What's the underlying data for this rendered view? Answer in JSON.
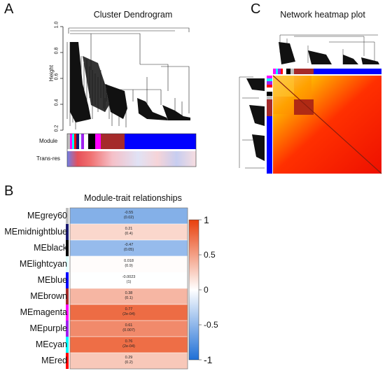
{
  "panelA": {
    "label": "A",
    "title": "Cluster Dendrogram",
    "ylabel": "Height",
    "yticks": [
      "1.0",
      "0.8",
      "0.6",
      "0.4",
      "0.2"
    ],
    "bar_labels": [
      "Module",
      "Trans-res"
    ]
  },
  "panelB": {
    "label": "B",
    "title": "Module-trait relationships",
    "rows": [
      {
        "name": "MEgrey60",
        "cor": "-0.55",
        "p": "(0.02)",
        "value": -0.55,
        "side": "#bebebe"
      },
      {
        "name": "MEmidnightblue",
        "cor": "0.21",
        "p": "(0.4)",
        "value": 0.21,
        "side": "#191970"
      },
      {
        "name": "MEblack",
        "cor": "-0.47",
        "p": "(0.05)",
        "value": -0.47,
        "side": "#000000"
      },
      {
        "name": "MElightcyan",
        "cor": "0.018",
        "p": "(0.9)",
        "value": 0.018,
        "side": "#e0ffff"
      },
      {
        "name": "MEblue",
        "cor": "-0.0023",
        "p": "(1)",
        "value": -0.0023,
        "side": "#0000ff"
      },
      {
        "name": "MEbrown",
        "cor": "0.38",
        "p": "(0.1)",
        "value": 0.38,
        "side": "#a52a2a"
      },
      {
        "name": "MEmagenta",
        "cor": "0.77",
        "p": "(2e-04)",
        "value": 0.77,
        "side": "#ff00ff"
      },
      {
        "name": "MEpurple",
        "cor": "0.61",
        "p": "(0.007)",
        "value": 0.61,
        "side": "#a020f0"
      },
      {
        "name": "MEcyan",
        "cor": "0.76",
        "p": "(2e-04)",
        "value": 0.76,
        "side": "#00ffff"
      },
      {
        "name": "MEred",
        "cor": "0.29",
        "p": "(0.2)",
        "value": 0.29,
        "side": "#ff0000"
      }
    ],
    "colorbar_ticks": [
      "1",
      "0.5",
      "0",
      "-0.5",
      "-1"
    ]
  },
  "panelC": {
    "label": "C",
    "title": "Network heatmap plot"
  },
  "colors": {
    "neg": "#1f6fd6",
    "zero": "#ffffff",
    "pos": "#e8400c"
  }
}
